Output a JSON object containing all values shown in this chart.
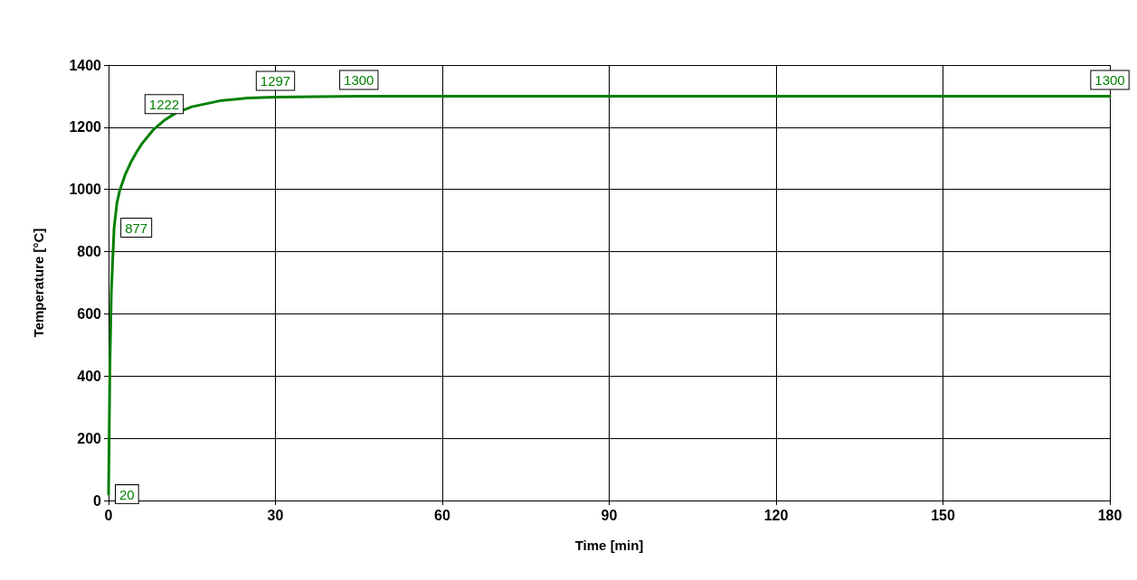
{
  "chart_data": {
    "type": "line",
    "xlabel": "Time [min]",
    "ylabel": "Temperature [°C]",
    "x": [
      0,
      0.25,
      0.5,
      1,
      1.5,
      2,
      3,
      4,
      5,
      6,
      8,
      10,
      12,
      15,
      20,
      25,
      30,
      45,
      180
    ],
    "series": [
      {
        "color": "#008000",
        "values": [
          20,
          439,
          670,
          877,
          956,
          996,
          1048,
          1087,
          1119,
          1147,
          1191,
          1222,
          1245,
          1266,
          1285,
          1294,
          1297,
          1300,
          1300
        ],
        "value_labels": [
          "20",
          null,
          null,
          "877",
          null,
          null,
          null,
          null,
          null,
          null,
          null,
          "1222",
          null,
          null,
          null,
          null,
          "1297",
          "1300",
          "1300"
        ]
      }
    ],
    "xlim": [
      0,
      180
    ],
    "xticks": [
      0,
      30,
      60,
      90,
      120,
      150,
      180
    ],
    "ylim": [
      0,
      1400
    ],
    "yticks": [
      0,
      200,
      400,
      600,
      800,
      1000,
      1200,
      1400
    ],
    "grid": true,
    "marker": "none",
    "line_style": "solid"
  }
}
